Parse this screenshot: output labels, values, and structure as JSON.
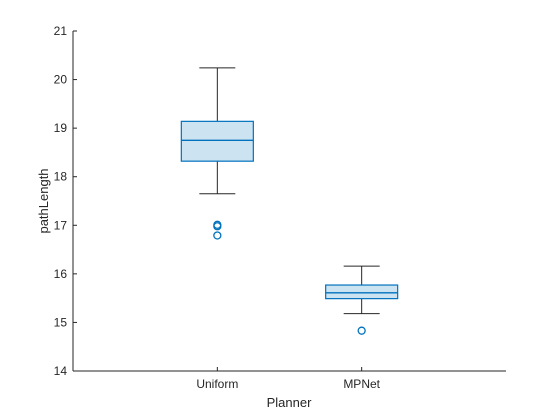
{
  "chart_data": {
    "type": "box",
    "xlabel": "Planner",
    "ylabel": "pathLength",
    "categories": [
      "Uniform",
      "MPNet"
    ],
    "ylim": [
      14,
      21
    ],
    "yticks": [
      14,
      15,
      16,
      17,
      18,
      19,
      20,
      21
    ],
    "grid": false,
    "box_color": "#0072BD",
    "box_fill": "#CCE3F2",
    "whisker_color": "#262626",
    "boxes": [
      {
        "category": "Uniform",
        "whisker_low": 17.65,
        "q1": 18.32,
        "median": 18.75,
        "q3": 19.14,
        "whisker_high": 20.24,
        "outliers": [
          17.01,
          16.98,
          16.79
        ]
      },
      {
        "category": "MPNet",
        "whisker_low": 15.18,
        "q1": 15.49,
        "median": 15.61,
        "q3": 15.77,
        "whisker_high": 16.16,
        "outliers": [
          14.83
        ]
      }
    ]
  }
}
